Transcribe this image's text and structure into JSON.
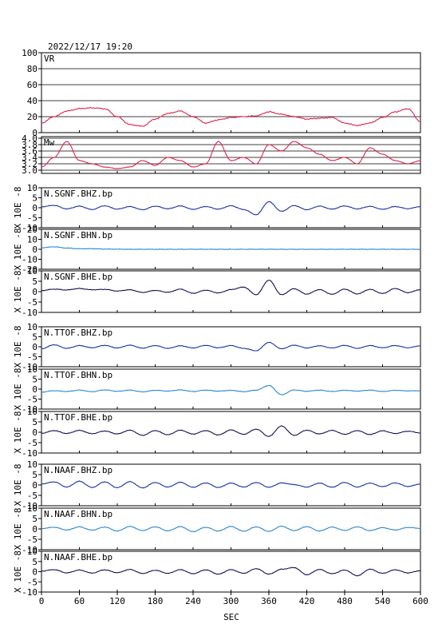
{
  "chart_data": {
    "type": "line",
    "title": "2022/12/17  19:20",
    "xlabel": "SEC",
    "xlim": [
      0,
      600
    ],
    "xticks": [
      0,
      60,
      120,
      180,
      240,
      300,
      360,
      420,
      480,
      540,
      600
    ],
    "panels": [
      {
        "name": "VR",
        "label": "VR",
        "ylim": [
          0,
          100
        ],
        "yticks": [
          0,
          20,
          40,
          60,
          80,
          100
        ],
        "grid": true,
        "color": "#e0204a",
        "x": [
          0,
          20,
          40,
          60,
          80,
          100,
          120,
          140,
          160,
          180,
          200,
          220,
          240,
          260,
          280,
          300,
          320,
          340,
          360,
          380,
          400,
          420,
          440,
          460,
          480,
          500,
          520,
          540,
          560,
          580,
          600
        ],
        "values": [
          12,
          20,
          27,
          30,
          31,
          30,
          20,
          10,
          8,
          17,
          24,
          27,
          20,
          12,
          16,
          19,
          20,
          21,
          26,
          23,
          20,
          17,
          18,
          19,
          12,
          9,
          12,
          19,
          26,
          30,
          14
        ]
      },
      {
        "name": "Mw",
        "label": "Mw",
        "ylim": [
          2.9,
          4.05
        ],
        "yticks": [
          3.0,
          3.2,
          3.4,
          3.6,
          3.8,
          4.0
        ],
        "tick_labels": [
          "3.0",
          "3.2",
          "3.4",
          "3.6",
          "3.8",
          "4.0"
        ],
        "grid": true,
        "color": "#e0204a",
        "x": [
          0,
          20,
          40,
          60,
          80,
          100,
          120,
          140,
          160,
          180,
          200,
          220,
          240,
          260,
          280,
          300,
          320,
          340,
          360,
          380,
          400,
          420,
          440,
          460,
          480,
          500,
          520,
          540,
          560,
          580,
          600
        ],
        "values": [
          3.1,
          3.4,
          3.9,
          3.3,
          3.2,
          3.1,
          3.05,
          3.1,
          3.3,
          3.15,
          3.4,
          3.3,
          3.1,
          3.2,
          3.9,
          3.3,
          3.4,
          3.2,
          3.8,
          3.6,
          3.9,
          3.7,
          3.5,
          3.3,
          3.4,
          3.2,
          3.7,
          3.5,
          3.3,
          3.2,
          3.3
        ]
      },
      {
        "name": "N.SGNF.BHZ.bp",
        "label": "N.SGNF.BHZ.bp",
        "ylabel": "X 10E -8",
        "ylim": [
          -10,
          10
        ],
        "yticks": [
          -10,
          -5,
          0,
          5,
          10
        ],
        "color": "#1a2fa0",
        "x": [
          0,
          20,
          40,
          60,
          80,
          100,
          120,
          140,
          160,
          180,
          200,
          220,
          240,
          260,
          280,
          300,
          320,
          340,
          360,
          380,
          400,
          420,
          440,
          460,
          480,
          500,
          520,
          540,
          560,
          580,
          600
        ],
        "values": [
          0.5,
          1.2,
          -0.6,
          0.8,
          -0.9,
          1.0,
          -0.7,
          0.6,
          -1.0,
          0.8,
          -0.5,
          0.9,
          -0.8,
          0.6,
          -0.7,
          1.0,
          -0.9,
          -3.5,
          3.0,
          -1.8,
          1.1,
          -1.0,
          0.8,
          -0.7,
          0.9,
          -0.6,
          0.7,
          -0.8,
          0.6,
          -0.5,
          0.6
        ]
      },
      {
        "name": "N.SGNF.BHN.bp",
        "label": "N.SGNF.BHN.bp",
        "ylabel": "X 10E -8",
        "ylim": [
          -20,
          20
        ],
        "yticks": [
          -20,
          -10,
          0,
          10,
          20
        ],
        "color": "#2a86d0",
        "x": [
          0,
          20,
          40,
          60,
          80,
          100,
          120,
          140,
          160,
          180,
          200,
          220,
          240,
          260,
          280,
          300,
          320,
          340,
          360,
          380,
          400,
          420,
          440,
          460,
          480,
          500,
          520,
          540,
          560,
          580,
          600
        ],
        "values": [
          1.5,
          2.5,
          1.2,
          0.5,
          0.6,
          0.2,
          0.1,
          0,
          0,
          0,
          0,
          0,
          0,
          0,
          0,
          0,
          0,
          0,
          0,
          0,
          0,
          0,
          0,
          0,
          0,
          0,
          0,
          0,
          0,
          0,
          0
        ]
      },
      {
        "name": "N.SGNF.BHE.bp",
        "label": "N.SGNF.BHE.bp",
        "ylabel": "X 10E -8",
        "ylim": [
          -10,
          10
        ],
        "yticks": [
          -10,
          -5,
          0,
          5,
          10
        ],
        "color": "#101050",
        "x": [
          0,
          20,
          40,
          60,
          80,
          100,
          120,
          140,
          160,
          180,
          200,
          220,
          240,
          260,
          280,
          300,
          320,
          340,
          360,
          380,
          400,
          420,
          440,
          460,
          480,
          500,
          520,
          540,
          560,
          580,
          600
        ],
        "values": [
          0.5,
          1.2,
          0.8,
          1.5,
          0.9,
          1.1,
          0.3,
          0.9,
          -0.4,
          0.6,
          -0.3,
          1.2,
          -0.8,
          0.7,
          -0.6,
          1.0,
          2.2,
          -1.5,
          5.5,
          -1.5,
          1.4,
          -1.2,
          1.0,
          -1.3,
          1.2,
          -1.1,
          1.1,
          -0.9,
          1.5,
          -0.5,
          1.0
        ]
      },
      {
        "name": "N.TTOF.BHZ.bp",
        "label": "N.TTOF.BHZ.bp",
        "ylabel": "X 10E -8",
        "ylim": [
          -10,
          10
        ],
        "yticks": [
          -10,
          -5,
          0,
          5,
          10
        ],
        "color": "#1a2fa0",
        "x": [
          0,
          20,
          40,
          60,
          80,
          100,
          120,
          140,
          160,
          180,
          200,
          220,
          240,
          260,
          280,
          300,
          320,
          340,
          360,
          380,
          400,
          420,
          440,
          460,
          480,
          500,
          520,
          540,
          560,
          580,
          600
        ],
        "values": [
          -1.0,
          1.0,
          -0.8,
          0.6,
          -0.5,
          0.7,
          -0.6,
          0.8,
          -0.7,
          0.6,
          -0.8,
          0.5,
          -0.6,
          0.7,
          -0.5,
          0.6,
          -0.8,
          -2.0,
          2.2,
          -1.0,
          0.8,
          -0.6,
          0.5,
          -0.6,
          0.7,
          -0.8,
          0.6,
          -0.5,
          0.6,
          -0.5,
          0.5
        ]
      },
      {
        "name": "N.TTOF.BHN.bp",
        "label": "N.TTOF.BHN.bp",
        "ylabel": "X 10E -8",
        "ylim": [
          -10,
          10
        ],
        "yticks": [
          -10,
          -5,
          0,
          5,
          10
        ],
        "color": "#2a86d0",
        "x": [
          0,
          20,
          40,
          60,
          80,
          100,
          120,
          140,
          160,
          180,
          200,
          220,
          240,
          260,
          280,
          300,
          320,
          340,
          360,
          380,
          400,
          420,
          440,
          460,
          480,
          500,
          520,
          540,
          560,
          580,
          600
        ],
        "values": [
          -1.5,
          -0.8,
          -1.2,
          -0.5,
          -1.3,
          -0.4,
          -1.1,
          -0.5,
          -1.4,
          -0.6,
          -1.0,
          -0.4,
          -1.2,
          -0.5,
          -1.0,
          -0.6,
          -1.3,
          -0.5,
          1.8,
          -2.8,
          -0.4,
          -1.1,
          -0.5,
          -1.2,
          -0.6,
          -1.0,
          -0.5,
          -1.2,
          -0.6,
          -0.9,
          -0.8
        ]
      },
      {
        "name": "N.TTOF.BHE.bp",
        "label": "N.TTOF.BHE.bp",
        "ylabel": "X 10E -8",
        "ylim": [
          -10,
          10
        ],
        "yticks": [
          -10,
          -5,
          0,
          5,
          10
        ],
        "color": "#101050",
        "x": [
          0,
          20,
          40,
          60,
          80,
          100,
          120,
          140,
          160,
          180,
          200,
          220,
          240,
          260,
          280,
          300,
          320,
          340,
          360,
          380,
          400,
          420,
          440,
          460,
          480,
          500,
          520,
          540,
          560,
          580,
          600
        ],
        "values": [
          -0.5,
          0.8,
          -0.6,
          0.9,
          -0.7,
          0.6,
          -0.8,
          1.0,
          -1.5,
          0.8,
          -1.2,
          1.0,
          -0.9,
          0.8,
          -1.3,
          1.1,
          -1.0,
          1.5,
          -2.0,
          3.0,
          -1.5,
          1.0,
          -0.8,
          0.9,
          -1.0,
          0.8,
          -1.1,
          0.7,
          -0.6,
          0.5,
          -0.3
        ]
      },
      {
        "name": "N.NAAF.BHZ.bp",
        "label": "N.NAAF.BHZ.bp",
        "ylabel": "X 10E -8",
        "ylim": [
          -10,
          10
        ],
        "yticks": [
          -10,
          -5,
          0,
          5,
          10
        ],
        "color": "#1a2fa0",
        "x": [
          0,
          20,
          40,
          60,
          80,
          100,
          120,
          140,
          160,
          180,
          200,
          220,
          240,
          260,
          280,
          300,
          320,
          340,
          360,
          380,
          400,
          420,
          440,
          460,
          480,
          500,
          520,
          540,
          560,
          580,
          600
        ],
        "values": [
          0.5,
          1.5,
          -1.0,
          1.8,
          -1.2,
          1.5,
          -1.3,
          1.6,
          -1.4,
          1.2,
          -1.0,
          1.3,
          -1.1,
          1.0,
          -1.2,
          0.9,
          -1.0,
          1.2,
          -1.1,
          1.0,
          0.2,
          -1.0,
          0.9,
          -1.1,
          1.2,
          -1.0,
          0.9,
          -0.8,
          1.0,
          -0.7,
          0.5
        ]
      },
      {
        "name": "N.NAAF.BHN.bp",
        "label": "N.NAAF.BHN.bp",
        "ylabel": "X 10E -8",
        "ylim": [
          -10,
          10
        ],
        "yticks": [
          -10,
          -5,
          0,
          5,
          10
        ],
        "color": "#2a86d0",
        "x": [
          0,
          20,
          40,
          60,
          80,
          100,
          120,
          140,
          160,
          180,
          200,
          220,
          240,
          260,
          280,
          300,
          320,
          340,
          360,
          380,
          400,
          420,
          440,
          460,
          480,
          500,
          520,
          540,
          560,
          580,
          600
        ],
        "values": [
          0.2,
          0.8,
          -0.5,
          1.0,
          -0.6,
          0.9,
          -1.0,
          1.2,
          -0.8,
          1.0,
          -0.9,
          1.1,
          -1.3,
          0.8,
          -1.0,
          1.2,
          -1.1,
          1.0,
          -1.2,
          1.3,
          -0.8,
          1.1,
          -1.0,
          0.9,
          -0.7,
          1.0,
          -0.8,
          0.6,
          -0.5,
          0.7,
          0.3
        ]
      },
      {
        "name": "N.NAAF.BHE.bp",
        "label": "N.NAAF.BHE.bp",
        "ylabel": "X 10E -8",
        "ylim": [
          -10,
          10
        ],
        "yticks": [
          -10,
          -5,
          0,
          5,
          10
        ],
        "color": "#101050",
        "x": [
          0,
          20,
          40,
          60,
          80,
          100,
          120,
          140,
          160,
          180,
          200,
          220,
          240,
          260,
          280,
          300,
          320,
          340,
          360,
          380,
          400,
          420,
          440,
          460,
          480,
          500,
          520,
          540,
          560,
          580,
          600
        ],
        "values": [
          0.3,
          1.0,
          -0.6,
          0.8,
          -0.7,
          0.9,
          -0.5,
          1.1,
          -0.9,
          0.7,
          -0.8,
          1.0,
          -1.0,
          0.9,
          -1.2,
          1.0,
          -0.8,
          1.5,
          -1.2,
          1.2,
          2.0,
          -1.5,
          1.1,
          -1.0,
          0.8,
          -2.0,
          1.2,
          -0.8,
          0.9,
          -0.6,
          0.5
        ]
      }
    ]
  }
}
